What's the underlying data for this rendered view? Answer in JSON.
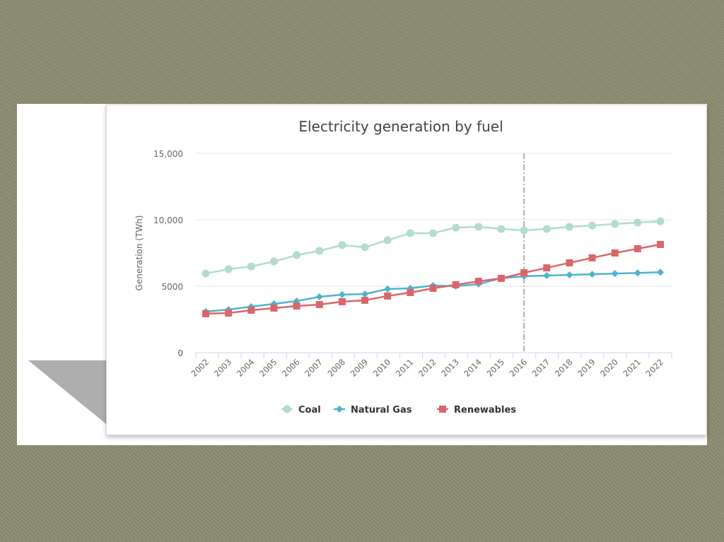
{
  "chart_data": {
    "type": "line",
    "title": "Electricity generation by fuel",
    "xlabel": "",
    "ylabel": "Generation (TWh)",
    "ylim": [
      0,
      15000
    ],
    "yticks": [
      0,
      5000,
      10000,
      15000
    ],
    "ytick_labels": [
      "0",
      "5000",
      "10,000",
      "15,000"
    ],
    "x": [
      "2002",
      "2003",
      "2004",
      "2005",
      "2006",
      "2007",
      "2008",
      "2009",
      "2010",
      "2011",
      "2012",
      "2013",
      "2014",
      "2015",
      "2016",
      "2017",
      "2018",
      "2019",
      "2020",
      "2021",
      "2022"
    ],
    "grid": "horizontal",
    "annotation": {
      "type": "vertical-dashed-line",
      "x": "2016"
    },
    "legend": "bottom",
    "series": [
      {
        "name": "Coal",
        "color": "#b3dccb",
        "marker": "circle",
        "values": [
          5950,
          6280,
          6490,
          6860,
          7340,
          7660,
          8090,
          7930,
          8460,
          8990,
          8990,
          9410,
          9470,
          9310,
          9200,
          9310,
          9470,
          9570,
          9680,
          9790,
          9890
        ]
      },
      {
        "name": "Natural Gas",
        "color": "#4fb3cc",
        "marker": "diamond",
        "values": [
          3090,
          3240,
          3460,
          3670,
          3880,
          4200,
          4360,
          4410,
          4790,
          4840,
          5050,
          5000,
          5160,
          5600,
          5750,
          5800,
          5850,
          5900,
          5950,
          6000,
          6050
        ]
      },
      {
        "name": "Renewables",
        "color": "#d9676a",
        "marker": "square",
        "values": [
          2930,
          2980,
          3190,
          3350,
          3510,
          3620,
          3830,
          3940,
          4260,
          4520,
          4840,
          5110,
          5370,
          5590,
          6010,
          6380,
          6760,
          7130,
          7500,
          7820,
          8140
        ]
      }
    ]
  }
}
